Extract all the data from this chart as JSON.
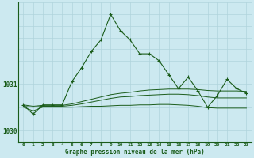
{
  "title": "Graphe pression niveau de la mer (hPa)",
  "background_color": "#cce9f0",
  "grid_color": "#b0d4dc",
  "line_color": "#1a5c1a",
  "main_series": [
    1030.55,
    1030.35,
    1030.55,
    1030.55,
    1030.55,
    1031.05,
    1031.35,
    1031.7,
    1031.95,
    1032.5,
    1032.15,
    1031.95,
    1031.65,
    1031.65,
    1031.5,
    1031.2,
    1030.9,
    1031.15,
    1030.85,
    1030.5,
    1030.75,
    1031.1,
    1030.9,
    1030.8
  ],
  "flat_series1": [
    1030.55,
    1030.52,
    1030.54,
    1030.54,
    1030.54,
    1030.57,
    1030.62,
    1030.67,
    1030.72,
    1030.77,
    1030.8,
    1030.82,
    1030.85,
    1030.87,
    1030.88,
    1030.89,
    1030.89,
    1030.89,
    1030.88,
    1030.86,
    1030.85,
    1030.85,
    1030.85,
    1030.84
  ],
  "flat_series2": [
    1030.52,
    1030.5,
    1030.52,
    1030.52,
    1030.52,
    1030.54,
    1030.57,
    1030.61,
    1030.65,
    1030.69,
    1030.72,
    1030.73,
    1030.75,
    1030.76,
    1030.77,
    1030.78,
    1030.78,
    1030.77,
    1030.75,
    1030.72,
    1030.7,
    1030.7,
    1030.7,
    1030.7
  ],
  "flat_series3": [
    1030.5,
    1030.42,
    1030.5,
    1030.5,
    1030.5,
    1030.5,
    1030.51,
    1030.52,
    1030.52,
    1030.53,
    1030.54,
    1030.54,
    1030.55,
    1030.55,
    1030.56,
    1030.56,
    1030.55,
    1030.54,
    1030.52,
    1030.49,
    1030.48,
    1030.48,
    1030.48,
    1030.48
  ],
  "ylim": [
    1029.75,
    1032.75
  ],
  "yticks": [
    1030.0,
    1031.0
  ],
  "x_labels": [
    "0",
    "1",
    "2",
    "3",
    "4",
    "5",
    "6",
    "7",
    "8",
    "9",
    "10",
    "11",
    "12",
    "13",
    "14",
    "15",
    "16",
    "17",
    "18",
    "19",
    "20",
    "21",
    "22",
    "23"
  ],
  "figsize": [
    3.2,
    2.0
  ],
  "dpi": 100
}
